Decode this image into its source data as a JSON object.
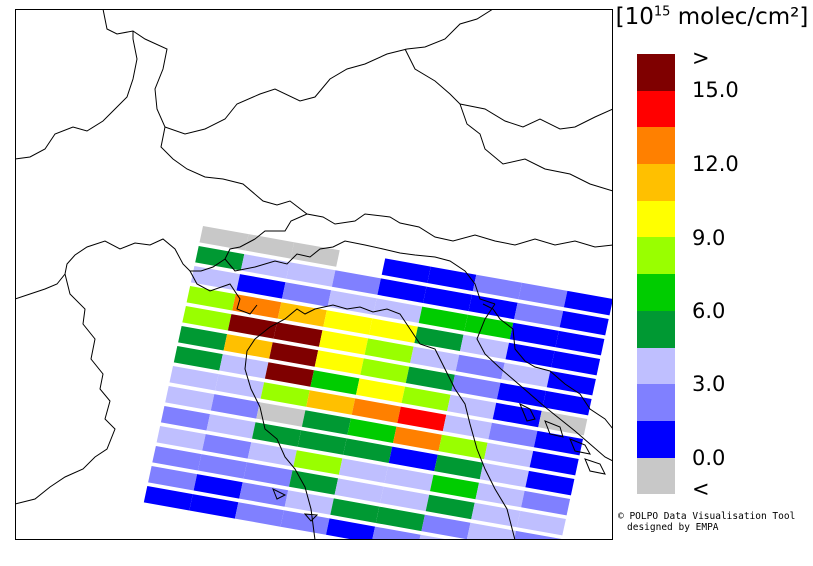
{
  "legend": {
    "unit_prefix": "[10",
    "unit_exp": "15",
    "unit_suffix": " molec/cm²]",
    "colors": [
      "#7f0000",
      "#ff0000",
      "#ff8000",
      "#ffc000",
      "#ffff00",
      "#99ff00",
      "#00cc00",
      "#009933",
      "#bfbfff",
      "#8080ff",
      "#0000ff",
      "#c8c8c8"
    ],
    "labels": [
      ">",
      "15.0",
      "12.0",
      "9.0",
      "6.0",
      "3.0",
      "0.0",
      "<"
    ]
  },
  "credit": {
    "line1": "© POLPO Data Visualisation Tool",
    "line2": "designed by EMPA"
  },
  "swath": {
    "columns": 9,
    "rows": [
      [
        11,
        11,
        11,
        -1,
        10,
        10,
        9,
        9,
        10
      ],
      [
        7,
        8,
        8,
        9,
        10,
        10,
        10,
        9,
        10
      ],
      [
        8,
        10,
        9,
        8,
        8,
        6,
        6,
        10,
        10
      ],
      [
        5,
        2,
        3,
        4,
        4,
        7,
        8,
        10,
        10
      ],
      [
        5,
        0,
        0,
        4,
        5,
        8,
        9,
        8,
        10
      ],
      [
        7,
        3,
        0,
        4,
        5,
        7,
        9,
        10,
        10
      ],
      [
        7,
        8,
        0,
        6,
        4,
        5,
        8,
        10,
        11
      ],
      [
        8,
        8,
        5,
        3,
        2,
        1,
        8,
        9,
        10
      ],
      [
        8,
        9,
        11,
        7,
        6,
        2,
        5,
        8,
        10
      ],
      [
        9,
        8,
        7,
        7,
        7,
        10,
        7,
        8,
        10
      ],
      [
        8,
        9,
        8,
        5,
        8,
        8,
        6,
        8,
        9
      ],
      [
        9,
        9,
        9,
        7,
        8,
        8,
        7,
        8,
        8
      ],
      [
        9,
        10,
        9,
        8,
        7,
        7,
        9,
        8,
        9
      ],
      [
        10,
        10,
        9,
        9,
        10,
        9,
        8,
        9,
        9
      ]
    ]
  }
}
